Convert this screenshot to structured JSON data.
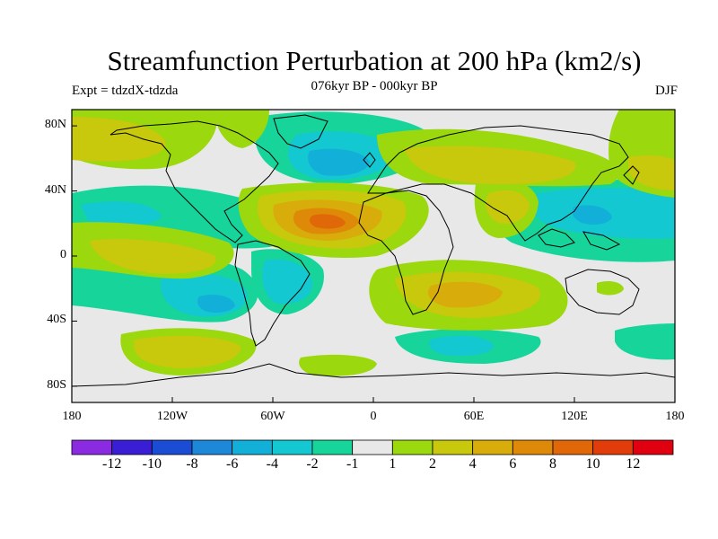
{
  "figure": {
    "title": "Streamfunction Perturbation at 200 hPa (km2/s)",
    "subtitle": "076kyr BP - 000kyr BP",
    "left_label": "Expt = tdzdX-tdzda",
    "right_label": "DJF"
  },
  "map": {
    "projection": "cylindrical equidistant",
    "lon_range": [
      -180,
      180
    ],
    "lat_range": [
      -90,
      90
    ],
    "ocean_background": "#e8e8e8",
    "lat_ticks": [
      "80N",
      "40N",
      "0",
      "40S",
      "80S"
    ],
    "lon_ticks": [
      "180",
      "120W",
      "60W",
      "0",
      "60E",
      "120E",
      "180"
    ]
  },
  "colorbar": {
    "colors": [
      "#8a2be2",
      "#3a1ed6",
      "#1a4cd4",
      "#1e88d8",
      "#12b0d8",
      "#13c8d0",
      "#17d49a",
      "#e8e8e8",
      "#9bd80d",
      "#c8c80c",
      "#d8ac0a",
      "#de8a08",
      "#e06808",
      "#e23c0a",
      "#e00010"
    ],
    "labels": [
      "-12",
      "-10",
      "-8",
      "-6",
      "-4",
      "-2",
      "-1",
      "1",
      "2",
      "4",
      "6",
      "8",
      "10",
      "12"
    ]
  },
  "field_blobs": [
    {
      "name": "n-atlantic-low",
      "level": "-4",
      "lon": -45,
      "lat": 55,
      "rx": 40,
      "ry": 15
    },
    {
      "name": "n-atlantic-low-outer",
      "level": "-2",
      "lon": -35,
      "lat": 58,
      "rx": 55,
      "ry": 22
    },
    {
      "name": "n-atlantic-low-edge",
      "level": "-1",
      "lon": -40,
      "lat": 55,
      "rx": 65,
      "ry": 30
    },
    {
      "name": "tropical-atlantic-high",
      "level": "6",
      "lon": -20,
      "lat": 18,
      "rx": 18,
      "ry": 8
    },
    {
      "name": "tropical-atlantic-high-2",
      "level": "4",
      "lon": -20,
      "lat": 18,
      "rx": 38,
      "ry": 15
    },
    {
      "name": "tropical-atlantic-high-3",
      "level": "2",
      "lon": -22,
      "lat": 18,
      "rx": 55,
      "ry": 22
    },
    {
      "name": "south-indian-high",
      "level": "4",
      "lon": 55,
      "lat": -25,
      "rx": 30,
      "ry": 10
    },
    {
      "name": "south-indian-high-2",
      "level": "2",
      "lon": 50,
      "lat": -25,
      "rx": 55,
      "ry": 20
    },
    {
      "name": "west-pacific-low",
      "level": "-2",
      "lon": 128,
      "lat": 18,
      "rx": 30,
      "ry": 15
    },
    {
      "name": "west-pacific-low-edge",
      "level": "-1",
      "lon": 125,
      "lat": 15,
      "rx": 45,
      "ry": 22
    }
  ]
}
